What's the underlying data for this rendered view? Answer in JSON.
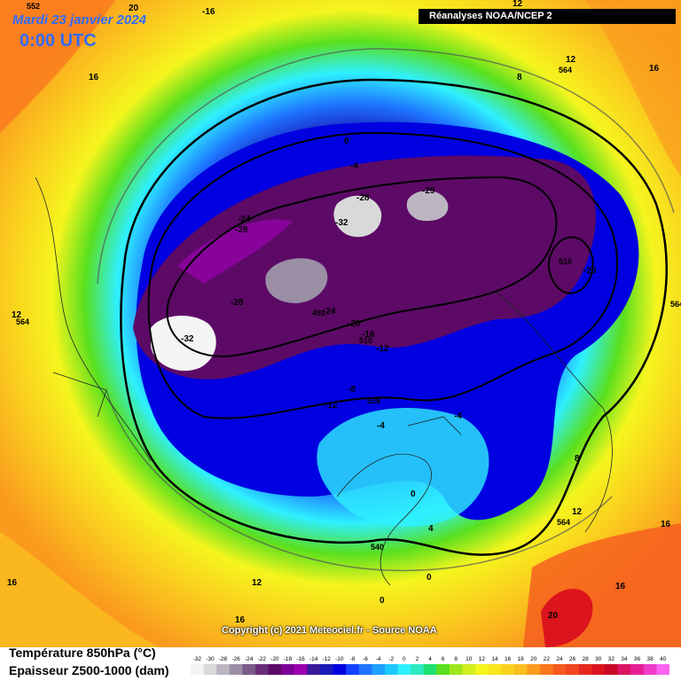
{
  "header": {
    "date": "Mardi 23 janvier 2024",
    "time": "0:00 UTC",
    "source": "Réanalyses NOAA/NCEP 2"
  },
  "copyright": "Copyright (c) 2021 Meteociel.fr - Source NOAA",
  "legend": {
    "title_temperature": "Température 850hPa (°C)",
    "title_thickness": "Epaisseur Z500-1000 (dam)",
    "ticks": [
      "-32",
      "-30",
      "-28",
      "-26",
      "-24",
      "-22",
      "-20",
      "-18",
      "-16",
      "-14",
      "-12",
      "-10",
      "-8",
      "-6",
      "-4",
      "-2",
      "0",
      "2",
      "4",
      "6",
      "8",
      "10",
      "12",
      "14",
      "16",
      "18",
      "20",
      "22",
      "24",
      "26",
      "28",
      "30",
      "32",
      "34",
      "36",
      "38",
      "40"
    ],
    "colors": [
      "#f4f4f4",
      "#d9d9d9",
      "#bdb6c2",
      "#9b8fa6",
      "#7a5b89",
      "#6a2d7a",
      "#5c0a66",
      "#7d0096",
      "#9b00b0",
      "#3a1a9a",
      "#1a1ab8",
      "#0000e0",
      "#1440ff",
      "#1e74ff",
      "#1ea0ff",
      "#1ec8ff",
      "#2ef0ff",
      "#2ee8c0",
      "#1ee070",
      "#5ae01e",
      "#a0e61e",
      "#d2ee1e",
      "#f5f51e",
      "#fae61e",
      "#fad21e",
      "#fabe1e",
      "#fa9b1e",
      "#fa781e",
      "#f55a1e",
      "#f0461e",
      "#e6281e",
      "#dc141e",
      "#c80a28",
      "#dc1464",
      "#e61e96",
      "#f03cc8",
      "#fa64f0"
    ]
  },
  "map_labels": {
    "temperature": [
      "16",
      "-16",
      "20",
      "16",
      "12",
      "16",
      "12",
      "8",
      "0",
      "-4",
      "-28",
      "-29",
      "-24",
      "-28",
      "-32",
      "-28",
      "-24",
      "-20",
      "-16",
      "-12",
      "-8",
      "-12",
      "-4",
      "-4",
      "0",
      "4",
      "0",
      "0",
      "-32",
      "-20",
      "12",
      "8",
      "12",
      "16",
      "16",
      "12",
      "16",
      "20"
    ],
    "thickness": [
      "552",
      "564",
      "492",
      "510",
      "510",
      "528",
      "540",
      "564",
      "564",
      "564"
    ]
  }
}
